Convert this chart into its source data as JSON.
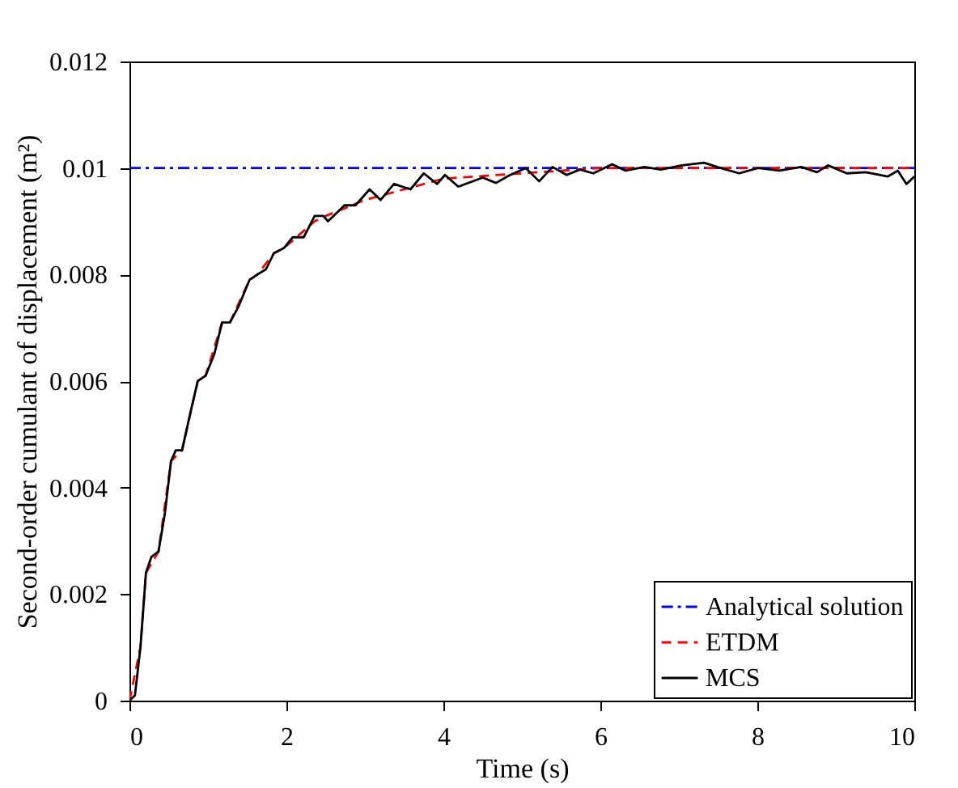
{
  "chart_data": {
    "type": "line",
    "xlabel": "Time (s)",
    "ylabel": "Second-order cumulant of displacement (m²)",
    "xlim": [
      0,
      10
    ],
    "xticks": [
      0,
      2,
      4,
      6,
      8,
      10
    ],
    "ylim": [
      0,
      0.012
    ],
    "yticks": [
      0,
      0.002,
      0.004,
      0.006,
      0.008,
      0.01,
      0.012
    ],
    "grid": false,
    "legend": "bottom right",
    "marker": "none",
    "series": [
      {
        "name": "Analytical solution",
        "color": "#0000ff",
        "line_style": "dashdot",
        "x": [
          0,
          10
        ],
        "values": [
          0.01,
          0.01
        ]
      },
      {
        "name": "ETDM",
        "color": "#ff0000",
        "line_style": "dashed",
        "x": [
          0,
          0.14,
          0.21,
          0.37,
          0.53,
          0.67,
          0.87,
          0.97,
          1.18,
          1.28,
          1.53,
          1.63,
          1.84,
          1.97,
          2.36,
          2.5,
          3,
          3.5,
          4,
          5,
          6,
          10
        ],
        "values": [
          0,
          0.001,
          0.0024,
          0.0028,
          0.0045,
          0.0047,
          0.006,
          0.0061,
          0.0071,
          0.0071,
          0.0079,
          0.008,
          0.0084,
          0.0085,
          0.009,
          0.0091,
          0.0094,
          0.0096,
          0.0098,
          0.0099,
          0.01,
          0.01
        ]
      },
      {
        "name": "MCS",
        "color": "#000000",
        "line_style": "solid",
        "x": [
          0,
          0.07,
          0.14,
          0.21,
          0.28,
          0.37,
          0.45,
          0.53,
          0.59,
          0.67,
          0.76,
          0.87,
          0.97,
          1.08,
          1.18,
          1.28,
          1.39,
          1.53,
          1.63,
          1.74,
          1.84,
          1.97,
          2.08,
          2.22,
          2.36,
          2.47,
          2.53,
          2.74,
          2.88,
          3.06,
          3.2,
          3.37,
          3.58,
          3.75,
          3.92,
          4.02,
          4.19,
          4.5,
          4.67,
          4.85,
          5.05,
          5.22,
          5.39,
          5.57,
          5.74,
          5.91,
          6.15,
          6.32,
          6.56,
          6.77,
          7.04,
          7.32,
          7.53,
          7.77,
          8.01,
          8.28,
          8.56,
          8.76,
          8.9,
          9.14,
          9.38,
          9.66,
          9.79,
          9.9,
          10
        ],
        "values": [
          0,
          0.0001,
          0.001,
          0.0024,
          0.0027,
          0.0028,
          0.0035,
          0.0045,
          0.0047,
          0.0047,
          0.0053,
          0.006,
          0.0061,
          0.0065,
          0.0071,
          0.0071,
          0.0074,
          0.0079,
          0.008,
          0.0081,
          0.0084,
          0.0085,
          0.0087,
          0.0087,
          0.0091,
          0.0091,
          0.009,
          0.0093,
          0.0093,
          0.0096,
          0.0094,
          0.0097,
          0.0096,
          0.0099,
          0.0097,
          0.00987,
          0.00965,
          0.00982,
          0.00972,
          0.00987,
          0.01,
          0.00975,
          0.01002,
          0.00987,
          0.00997,
          0.0099,
          0.01007,
          0.00995,
          0.01002,
          0.00997,
          0.01005,
          0.0101,
          0.01,
          0.0099,
          0.01,
          0.00995,
          0.01002,
          0.00992,
          0.01005,
          0.0099,
          0.00992,
          0.00984,
          0.00995,
          0.0097,
          0.00984
        ]
      }
    ]
  }
}
